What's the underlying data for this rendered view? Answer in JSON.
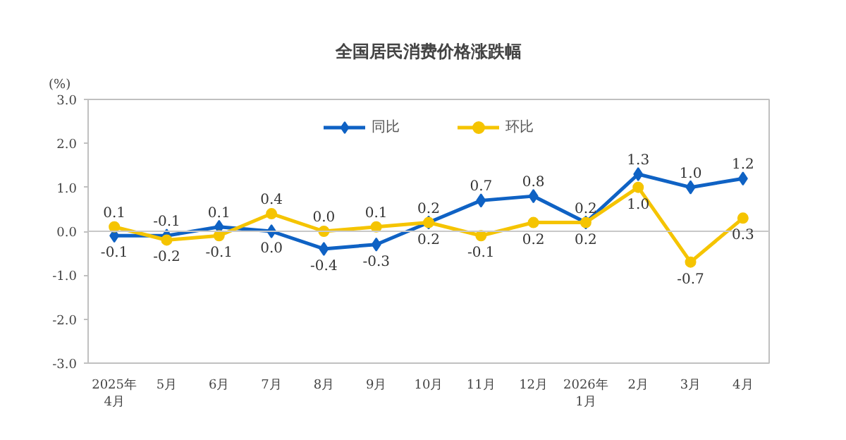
{
  "chart_data": {
    "type": "line",
    "title": "全国居民消费价格涨跌幅",
    "ylabel": "(%)",
    "categories": [
      "2025年\n4月",
      "5月",
      "6月",
      "7月",
      "8月",
      "9月",
      "10月",
      "11月",
      "12月",
      "2026年\n1月",
      "2月",
      "3月",
      "4月"
    ],
    "series": [
      {
        "name": "同比",
        "color": "#0f62c4",
        "marker": "diamond",
        "values": [
          -0.1,
          -0.1,
          0.1,
          0.0,
          -0.4,
          -0.3,
          0.2,
          0.7,
          0.8,
          0.2,
          1.3,
          1.0,
          1.2
        ],
        "value_labels": [
          "-0.1",
          "-0.1",
          "0.1",
          "0.0",
          "-0.4",
          "-0.3",
          "0.2",
          "0.7",
          "0.8",
          "0.2",
          "1.3",
          "1.0",
          "1.2"
        ]
      },
      {
        "name": "环比",
        "color": "#f5c400",
        "marker": "circle",
        "values": [
          0.1,
          -0.2,
          -0.1,
          0.4,
          0.0,
          0.1,
          0.2,
          -0.1,
          0.2,
          0.2,
          1.0,
          -0.7,
          0.3
        ],
        "value_labels": [
          "0.1",
          "-0.2",
          "-0.1",
          "0.4",
          "0.0",
          "0.1",
          "0.2",
          "-0.1",
          "0.2",
          "0.2",
          "1.0",
          "-0.7",
          "0.3"
        ]
      }
    ],
    "ylim": [
      -3,
      3
    ],
    "yticks": [
      {
        "value": -3,
        "label": "-3.0"
      },
      {
        "value": -2,
        "label": "-2.0"
      },
      {
        "value": -1,
        "label": "-1.0"
      },
      {
        "value": 0,
        "label": "0.0"
      },
      {
        "value": 1,
        "label": "1.0"
      },
      {
        "value": 2,
        "label": "2.0"
      },
      {
        "value": 3,
        "label": "3.0"
      }
    ],
    "ref_lines": [
      {
        "axis": "y",
        "value": 0,
        "color": "#c8c8c8"
      }
    ],
    "legend": "top",
    "grid": false,
    "line_style": "solid"
  }
}
